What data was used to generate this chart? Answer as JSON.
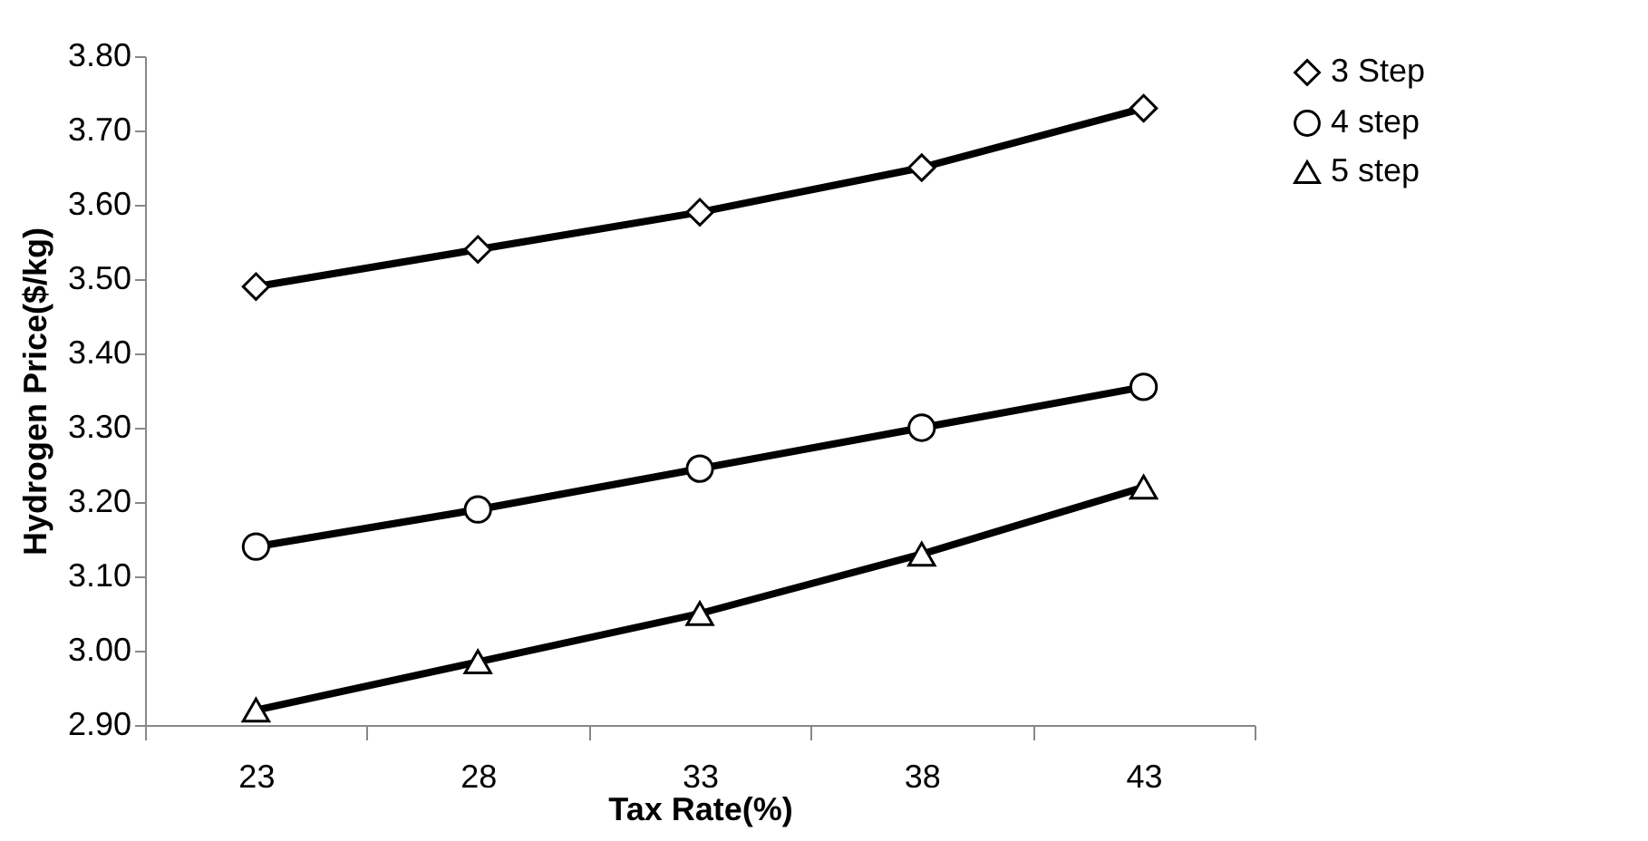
{
  "chart_data": {
    "type": "line",
    "xlabel": "Tax Rate(%)",
    "ylabel": "Hydrogen Price($/kg)",
    "categories": [
      "23",
      "28",
      "33",
      "38",
      "43"
    ],
    "ylim": [
      2.9,
      3.8
    ],
    "yticks": [
      {
        "value": 2.9,
        "label": "2.90"
      },
      {
        "value": 3.0,
        "label": "3.00"
      },
      {
        "value": 3.1,
        "label": "3.10"
      },
      {
        "value": 3.2,
        "label": "3.20"
      },
      {
        "value": 3.3,
        "label": "3.30"
      },
      {
        "value": 3.4,
        "label": "3.40"
      },
      {
        "value": 3.5,
        "label": "3.50"
      },
      {
        "value": 3.6,
        "label": "3.60"
      },
      {
        "value": 3.7,
        "label": "3.70"
      },
      {
        "value": 3.8,
        "label": "3.80"
      }
    ],
    "grid": false,
    "legend": "right",
    "line_style": "solid",
    "series": [
      {
        "name": "3 Step",
        "color": "#000000",
        "marker": "diamond",
        "values": [
          3.49,
          3.54,
          3.59,
          3.65,
          3.73
        ]
      },
      {
        "name": "4 step",
        "color": "#000000",
        "marker": "circle",
        "values": [
          3.14,
          3.19,
          3.245,
          3.3,
          3.355
        ]
      },
      {
        "name": "5 step",
        "color": "#000000",
        "marker": "triangle",
        "values": [
          2.92,
          2.985,
          3.05,
          3.13,
          3.22
        ]
      }
    ]
  }
}
